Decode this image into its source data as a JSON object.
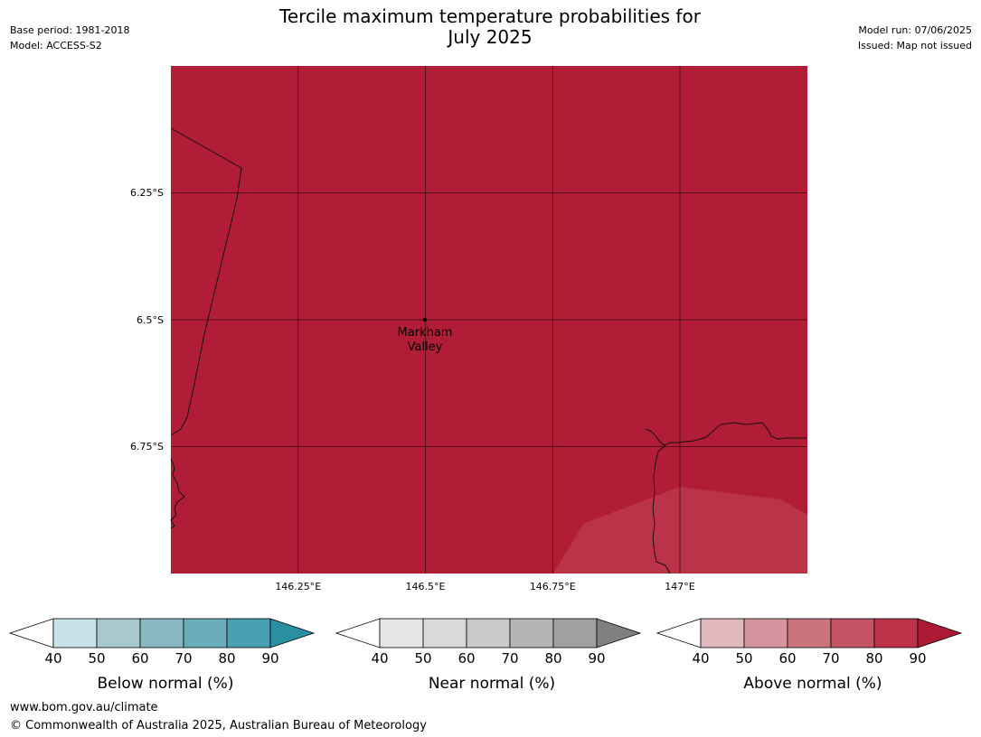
{
  "header": {
    "title_line1": "Tercile maximum temperature probabilities for",
    "title_line2": "July 2025",
    "base_period": "Base period: 1981-2018",
    "model": "Model: ACCESS-S2",
    "model_run": "Model run: 07/06/2025",
    "issued": "Issued: Map not issued"
  },
  "map": {
    "background_color": "#b11d37",
    "lighter_region_color": "#bb3349",
    "latitude_labels": [
      "6.25°S",
      "6.5°S",
      "6.75°S"
    ],
    "longitude_labels": [
      "146.25°E",
      "146.5°E",
      "146.75°E",
      "147°E"
    ],
    "place": {
      "name_line1": "Markham",
      "name_line2": "Valley"
    }
  },
  "colorbars": [
    {
      "title": "Below normal (%)",
      "ticks": [
        "40",
        "50",
        "60",
        "70",
        "80",
        "90"
      ],
      "colors": [
        "#c8e1e6",
        "#a8c8cd",
        "#88b7c2",
        "#6aadbb",
        "#48a0b0",
        "#2a8fa1"
      ]
    },
    {
      "title": "Near normal (%)",
      "ticks": [
        "40",
        "50",
        "60",
        "70",
        "80",
        "90"
      ],
      "colors": [
        "#e6e6e6",
        "#d9d9d9",
        "#c9c9c9",
        "#b5b5b5",
        "#a0a0a0",
        "#808080"
      ]
    },
    {
      "title": "Above normal (%)",
      "ticks": [
        "40",
        "50",
        "60",
        "70",
        "80",
        "90"
      ],
      "colors": [
        "#e2b8bf",
        "#d6959e",
        "#cb747e",
        "#c25463",
        "#bc3349",
        "#ad1a36"
      ]
    }
  ],
  "footer": {
    "url": "www.bom.gov.au/climate",
    "copyright": "© Commonwealth of Australia 2025, Australian Bureau of Meteorology"
  }
}
